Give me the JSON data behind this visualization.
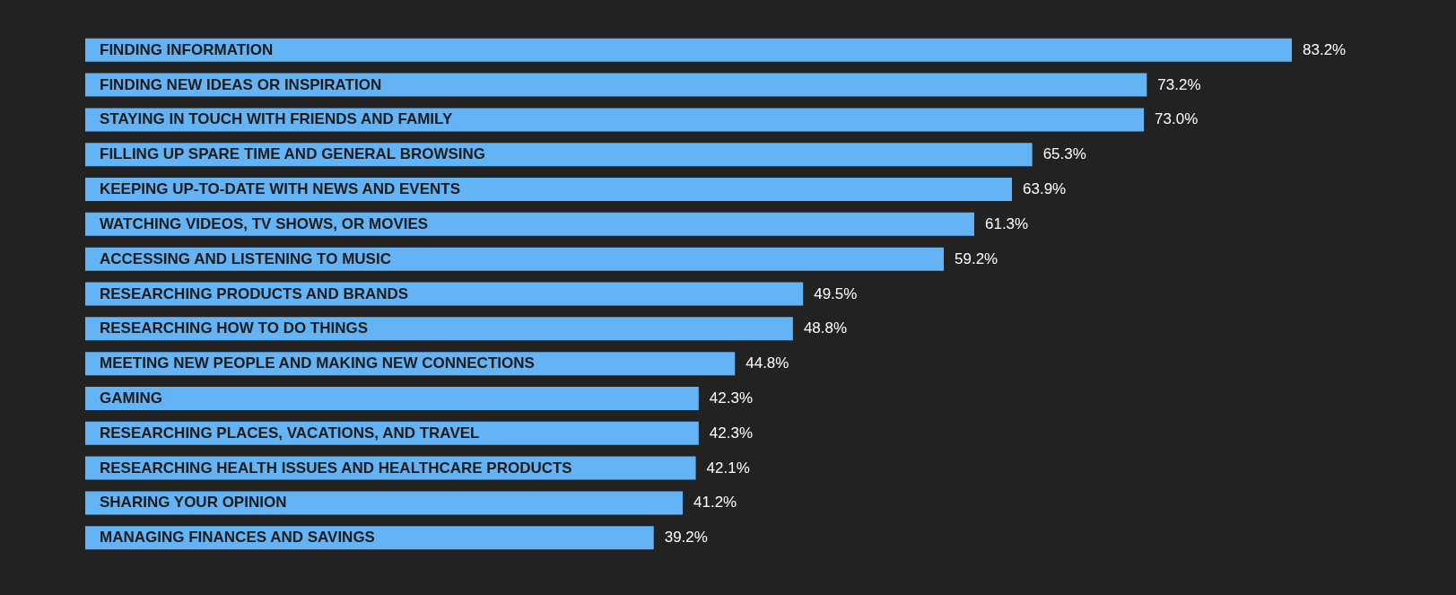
{
  "chart_data": {
    "type": "bar",
    "orientation": "horizontal",
    "data_labels": true,
    "color": "#63b3f5",
    "categories": [
      "FINDING INFORMATION",
      "FINDING NEW IDEAS OR INSPIRATION",
      "STAYING IN TOUCH WITH FRIENDS AND FAMILY",
      "FILLING UP SPARE TIME AND GENERAL BROWSING",
      "KEEPING UP-TO-DATE WITH NEWS AND EVENTS",
      "WATCHING VIDEOS, TV SHOWS, OR MOVIES",
      "ACCESSING AND LISTENING TO MUSIC",
      "RESEARCHING PRODUCTS AND BRANDS",
      "RESEARCHING HOW TO DO THINGS",
      "MEETING NEW PEOPLE AND MAKING NEW CONNECTIONS",
      "GAMING",
      "RESEARCHING PLACES, VACATIONS, AND TRAVEL",
      "RESEARCHING HEALTH ISSUES AND HEALTHCARE PRODUCTS",
      "SHARING YOUR OPINION",
      "MANAGING FINANCES AND SAVINGS"
    ],
    "values": [
      83.2,
      73.2,
      73.0,
      65.3,
      63.9,
      61.3,
      59.2,
      49.5,
      48.8,
      44.8,
      42.3,
      42.3,
      42.1,
      41.2,
      39.2
    ],
    "value_labels": [
      "83.2%",
      "73.2%",
      "73.0%",
      "65.3%",
      "63.9%",
      "61.3%",
      "59.2%",
      "49.5%",
      "48.8%",
      "44.8%",
      "42.3%",
      "42.3%",
      "42.1%",
      "41.2%",
      "39.2%"
    ]
  }
}
